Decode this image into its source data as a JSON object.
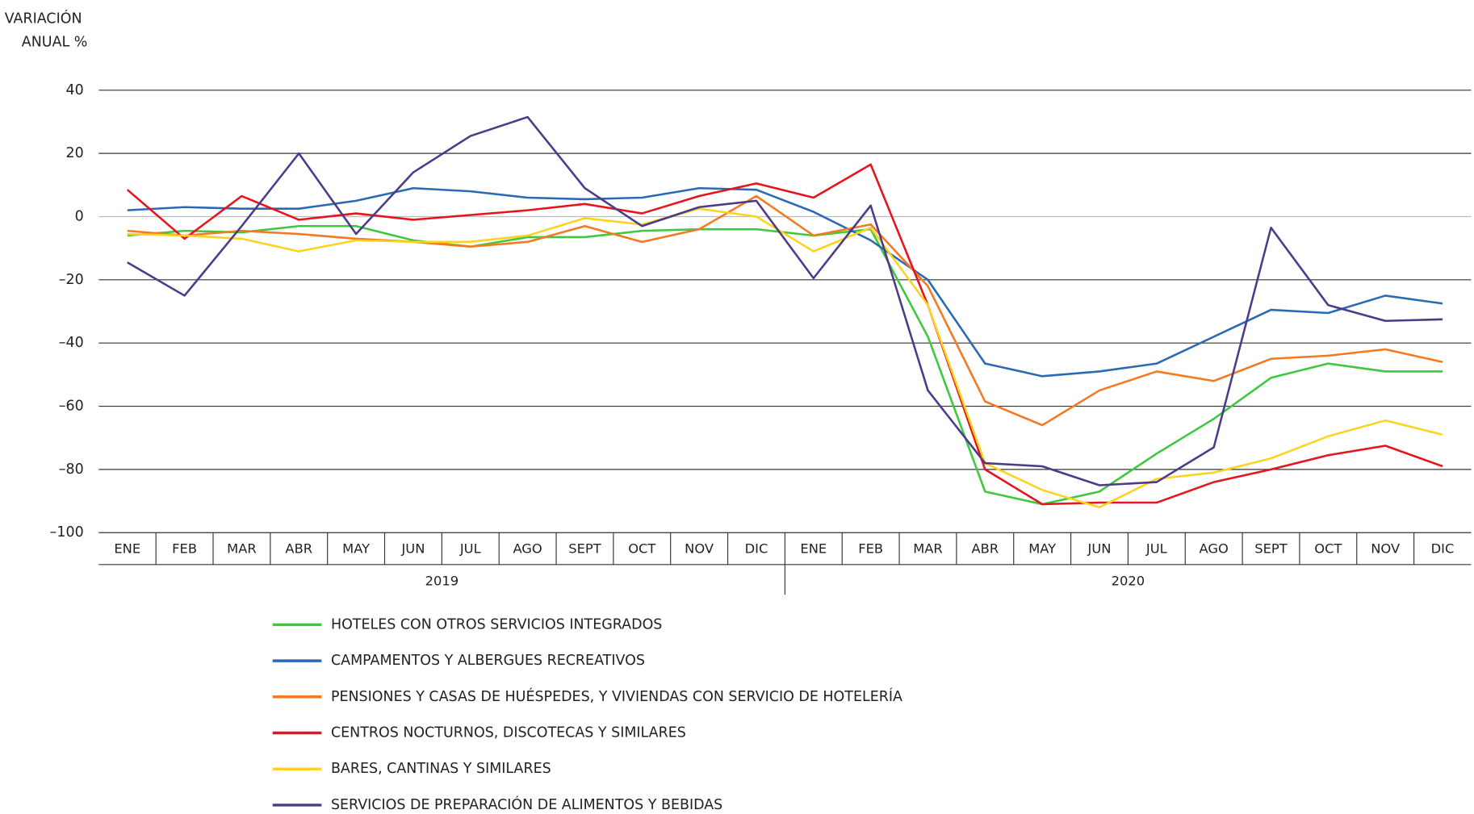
{
  "chart_data": {
    "type": "line",
    "y_axis_label": [
      "VARIACIÓN",
      "ANUAL %"
    ],
    "categories": [
      "ENE",
      "FEB",
      "MAR",
      "ABR",
      "MAY",
      "JUN",
      "JUL",
      "AGO",
      "SEPT",
      "OCT",
      "NOV",
      "DIC",
      "ENE",
      "FEB",
      "MAR",
      "ABR",
      "MAY",
      "JUN",
      "JUL",
      "AGO",
      "SEPT",
      "OCT",
      "NOV",
      "DIC"
    ],
    "years": [
      "2019",
      "2020"
    ],
    "ylim": [
      -100,
      40
    ],
    "yticks": [
      {
        "value": -100,
        "label": "–100"
      },
      {
        "value": -80,
        "label": "–80"
      },
      {
        "value": -60,
        "label": "–60"
      },
      {
        "value": -40,
        "label": "–40"
      },
      {
        "value": -20,
        "label": "–20"
      },
      0,
      20,
      40
    ],
    "grid": true,
    "series": [
      {
        "name": "HOTELES CON OTROS SERVICIOS INTEGRADOS",
        "color": "#3ec83e",
        "values": [
          -6,
          -4.5,
          -5,
          -3,
          -3,
          -7.5,
          -9.5,
          -6.5,
          -6.5,
          -4.5,
          -4,
          -4,
          -6,
          -4,
          -38,
          -87,
          -91,
          -87,
          -75,
          -64,
          -51,
          -46.5,
          -49,
          -49
        ]
      },
      {
        "name": "CAMPAMENTOS Y ALBERGUES RECREATIVOS",
        "color": "#2a6ab5",
        "values": [
          2,
          3,
          2.5,
          2.5,
          5,
          9,
          8,
          6,
          5.5,
          6,
          9,
          8.5,
          1.5,
          -7.5,
          -20,
          -46.5,
          -50.5,
          -49,
          -46.5,
          -38,
          -29.5,
          -30.5,
          -25,
          -27.5
        ]
      },
      {
        "name": "PENSIONES Y CASAS DE HUÉSPEDES, Y VIVIENDAS CON SERVICIO DE HOTELERÍA",
        "color": "#f47920",
        "values": [
          -4.5,
          -6,
          -4.5,
          -5.5,
          -7,
          -8,
          -9.5,
          -8,
          -3,
          -8,
          -4,
          6.5,
          -6,
          -2.5,
          -22,
          -58.5,
          -66,
          -55,
          -49,
          -52,
          -45,
          -44,
          -42,
          -46
        ]
      },
      {
        "name": "CENTROS NOCTURNOS, DISCOTECAS Y SIMILARES",
        "color": "#e8141c",
        "values": [
          8.5,
          -7,
          6.5,
          -1,
          1,
          -1,
          0.5,
          2,
          4,
          1,
          6.5,
          10.5,
          6,
          16.5,
          -28,
          -80,
          -91,
          -90.5,
          -90.5,
          -84,
          -80,
          -75.5,
          -72.5,
          -79
        ]
      },
      {
        "name": "BARES, CANTINAS Y SIMILARES",
        "color": "#fdd31f",
        "values": [
          -5.5,
          -6,
          -7,
          -11,
          -7.5,
          -8,
          -8,
          -6,
          -0.5,
          -2.5,
          2.5,
          0,
          -11,
          -3.5,
          -28,
          -78,
          -86.5,
          -92,
          -83,
          -81,
          -76.5,
          -69.5,
          -64.5,
          -69
        ]
      },
      {
        "name": "SERVICIOS DE PREPARACIÓN DE ALIMENTOS Y BEBIDAS",
        "color": "#4d3a8a",
        "values": [
          -14.5,
          -25,
          -3,
          20,
          -5.5,
          14,
          25.5,
          31.5,
          9,
          -3,
          3,
          5,
          -19.5,
          3.5,
          -55,
          -78,
          -79,
          -85,
          -84,
          -73,
          -3.5,
          -28,
          -33,
          -32.5
        ]
      }
    ]
  }
}
